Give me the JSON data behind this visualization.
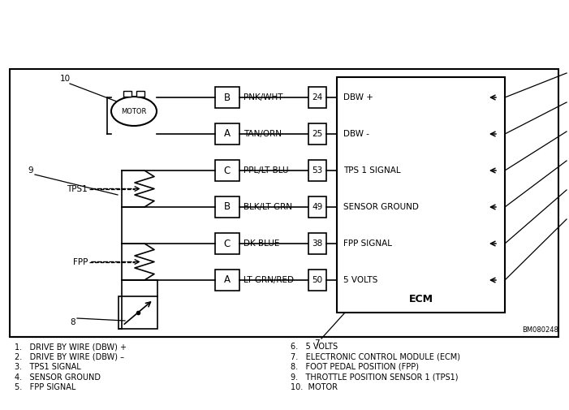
{
  "bg_color": "#ffffff",
  "connector_rows": [
    {
      "pin_letter": "B",
      "wire_color": "PNK/WHT",
      "pin_num": "24",
      "signal": "DBW +"
    },
    {
      "pin_letter": "A",
      "wire_color": "TAN/ORN",
      "pin_num": "25",
      "signal": "DBW -"
    },
    {
      "pin_letter": "C",
      "wire_color": "PPL/LT BLU",
      "pin_num": "53",
      "signal": "TPS 1 SIGNAL"
    },
    {
      "pin_letter": "B",
      "wire_color": "BLK/LT GRN",
      "pin_num": "49",
      "signal": "SENSOR GROUND"
    },
    {
      "pin_letter": "C",
      "wire_color": "DK BLUE",
      "pin_num": "38",
      "signal": "FPP SIGNAL"
    },
    {
      "pin_letter": "A",
      "wire_color": "LT GRN/RED",
      "pin_num": "50",
      "signal": "5 VOLTS"
    }
  ],
  "ecm_label": "ECM",
  "bm_code": "BM080248",
  "legend_col1": [
    "1.   DRIVE BY WIRE (DBW) +",
    "2.   DRIVE BY WIRE (DBW) –",
    "3.   TPS1 SIGNAL",
    "4.   SENSOR GROUND",
    "5.   FPP SIGNAL"
  ],
  "legend_col2": [
    "6.   5 VOLTS",
    "7.   ELECTRONIC CONTROL MODULE (ECM)",
    "8.   FOOT PEDAL POSITION (FPP)",
    "9.   THROTTLE POSITION SENSOR 1 (TPS1)",
    "10.  MOTOR"
  ]
}
